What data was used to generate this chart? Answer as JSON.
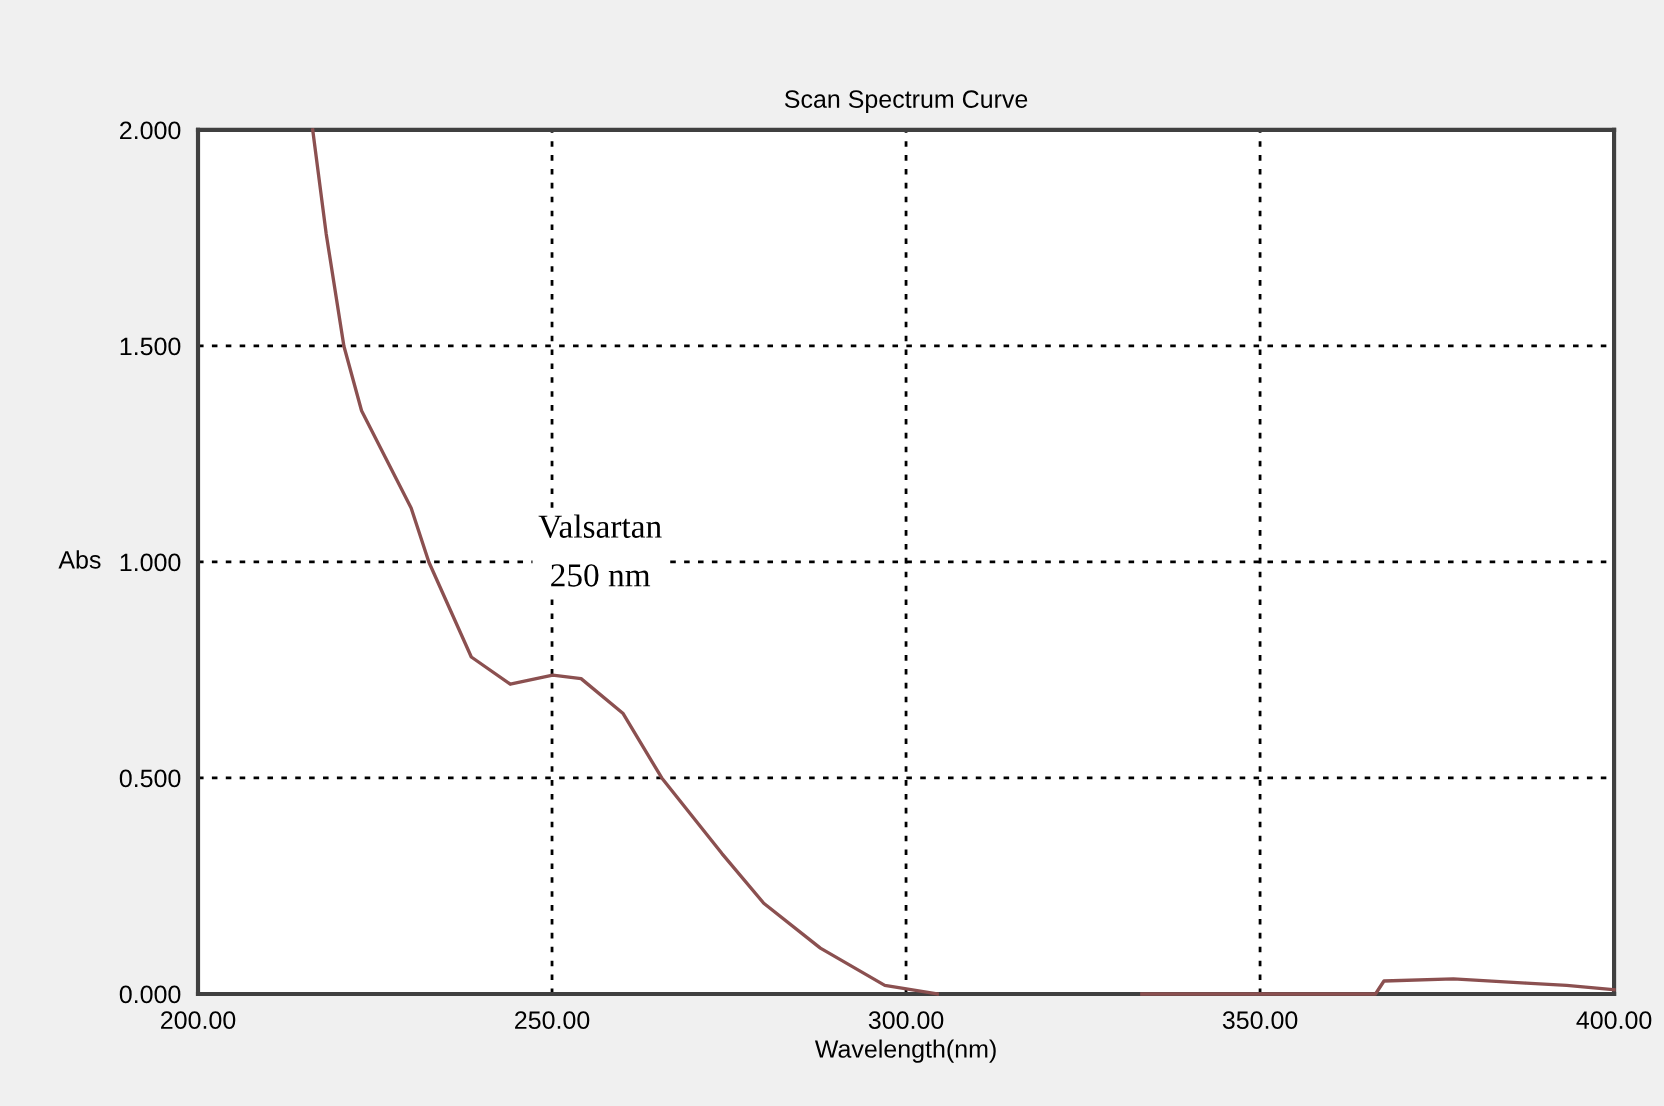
{
  "chart_data": {
    "type": "line",
    "title": "Scan Spectrum Curve",
    "xlabel": "Wavelength(nm)",
    "ylabel": "Abs",
    "series": [
      {
        "color": "#8b5050",
        "x": [
          216.2,
          218.1,
          220.6,
          223.1,
          230.1,
          232.6,
          238.6,
          244.1,
          250.1,
          254.1,
          260.0,
          265.5,
          274.0,
          279.9,
          287.9,
          297.0,
          304.4,
          318.0,
          333.3,
          350.0,
          366.3,
          367.5,
          377.3,
          387.6,
          393.3,
          400.0
        ],
        "values": [
          2.0,
          1.76,
          1.5,
          1.35,
          1.125,
          1.0,
          0.78,
          0.717,
          0.738,
          0.73,
          0.65,
          0.5,
          0.325,
          0.21,
          0.106,
          0.02,
          0.0,
          null,
          0.0,
          0.0,
          0.0,
          0.03,
          0.035,
          0.025,
          0.02,
          0.01
        ]
      }
    ],
    "xlim": [
      200,
      400
    ],
    "ylim": [
      0,
      2
    ],
    "xticks": [
      {
        "value": 200,
        "label": "200.00"
      },
      {
        "value": 250,
        "label": "250.00"
      },
      {
        "value": 300,
        "label": "300.00"
      },
      {
        "value": 350,
        "label": "350.00"
      },
      {
        "value": 400,
        "label": "400.00"
      }
    ],
    "yticks": [
      {
        "value": 0,
        "label": "0.000"
      },
      {
        "value": 0.5,
        "label": "0.500"
      },
      {
        "value": 1,
        "label": "1.000"
      },
      {
        "value": 1.5,
        "label": "1.500"
      },
      {
        "value": 2,
        "label": "2.000"
      }
    ],
    "grid": true,
    "line_style": "solid",
    "marker": "none",
    "annotations": [
      "Valsartan\n250 nm"
    ]
  }
}
